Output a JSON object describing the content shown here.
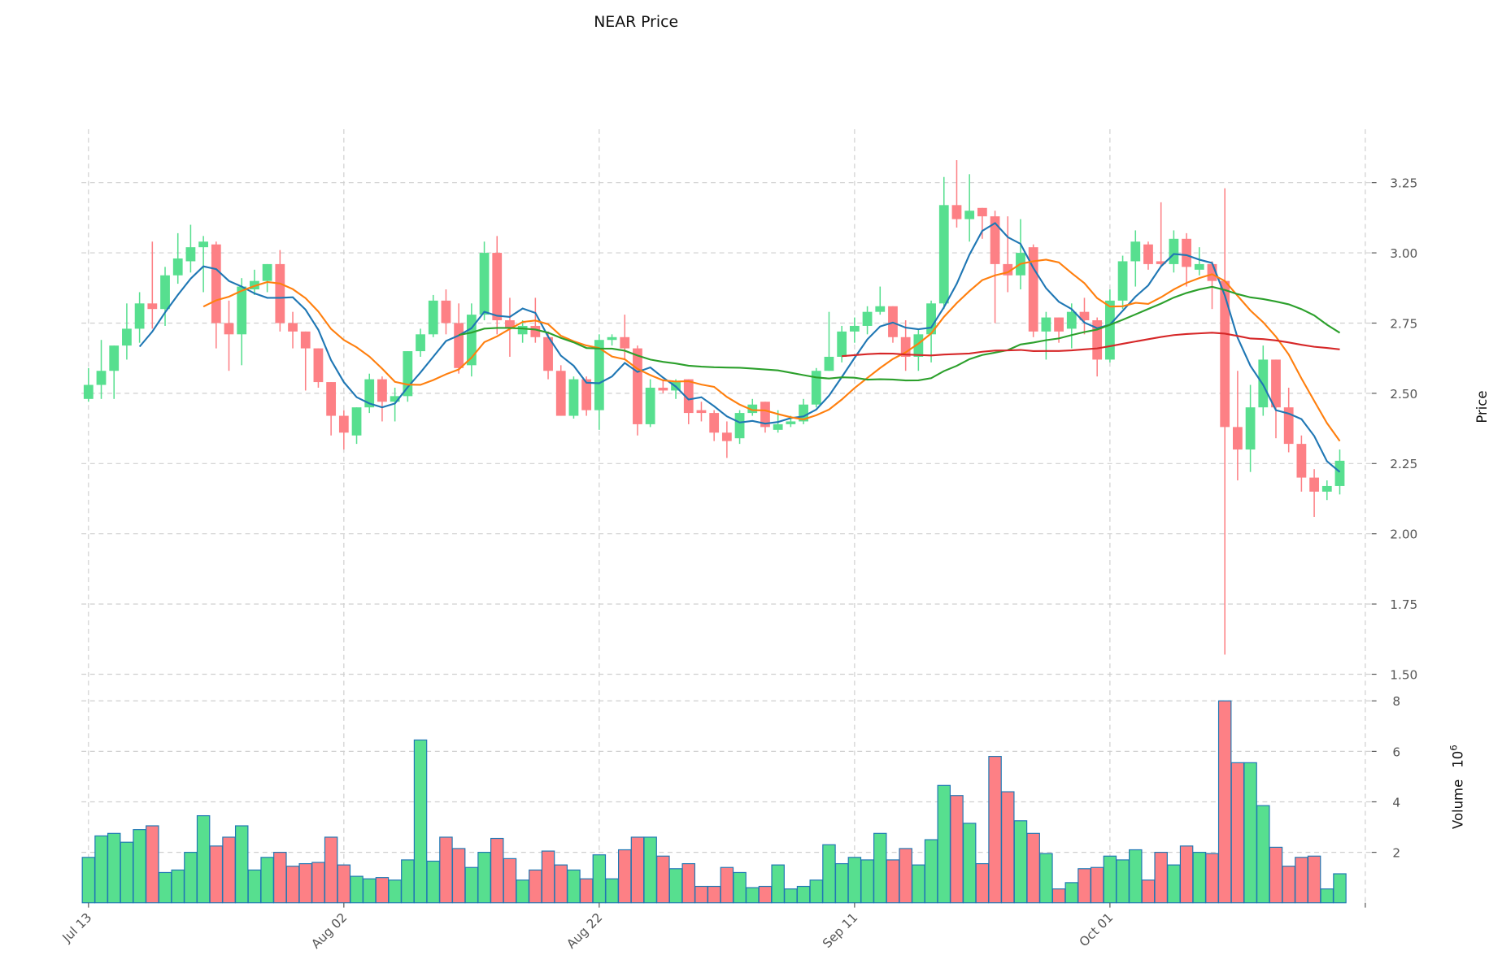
{
  "chart_data": {
    "type": "candlestick",
    "title": "NEAR Price",
    "ylabel_price": "Price",
    "ylabel_volume": "Volume",
    "volume_multiplier": "10^6",
    "volume_multiplier_base": "10",
    "volume_multiplier_exp": "6",
    "x_tick_labels": [
      {
        "index": 0,
        "label": "Jul 13"
      },
      {
        "index": 20,
        "label": "Aug 02"
      },
      {
        "index": 40,
        "label": "Aug 22"
      },
      {
        "index": 60,
        "label": "Sep 11"
      },
      {
        "index": 80,
        "label": "Oct 01"
      },
      {
        "index": 100,
        "label": ""
      }
    ],
    "price_ticks": [
      "1.50",
      "1.75",
      "2.00",
      "2.25",
      "2.50",
      "2.75",
      "3.00",
      "3.25"
    ],
    "price_range": [
      1.46,
      3.44
    ],
    "volume_ticks": [
      "2",
      "4",
      "6",
      "8"
    ],
    "volume_range": [
      0,
      8.42
    ],
    "grid": true,
    "colors": {
      "up": "#57df8f",
      "down": "#fd8085",
      "volume_edge": "#1f77b4",
      "ma": [
        "#1f77b4",
        "#ff7f0e",
        "#2ca02c",
        "#d62728"
      ]
    },
    "ma_periods": [
      5,
      10,
      30,
      60
    ],
    "ohlc": [
      [
        2.48,
        2.59,
        2.47,
        2.53
      ],
      [
        2.53,
        2.69,
        2.48,
        2.58
      ],
      [
        2.58,
        2.67,
        2.48,
        2.67
      ],
      [
        2.67,
        2.82,
        2.62,
        2.73
      ],
      [
        2.73,
        2.86,
        2.68,
        2.82
      ],
      [
        2.82,
        3.04,
        2.73,
        2.8
      ],
      [
        2.8,
        2.95,
        2.74,
        2.92
      ],
      [
        2.92,
        3.07,
        2.89,
        2.98
      ],
      [
        2.97,
        3.1,
        2.93,
        3.02
      ],
      [
        3.02,
        3.06,
        2.86,
        3.04
      ],
      [
        3.03,
        3.04,
        2.66,
        2.75
      ],
      [
        2.75,
        2.83,
        2.58,
        2.71
      ],
      [
        2.71,
        2.91,
        2.6,
        2.88
      ],
      [
        2.87,
        2.94,
        2.85,
        2.9
      ],
      [
        2.9,
        2.96,
        2.86,
        2.96
      ],
      [
        2.96,
        3.01,
        2.72,
        2.75
      ],
      [
        2.75,
        2.79,
        2.66,
        2.72
      ],
      [
        2.72,
        2.72,
        2.51,
        2.66
      ],
      [
        2.66,
        2.66,
        2.52,
        2.54
      ],
      [
        2.54,
        2.54,
        2.35,
        2.42
      ],
      [
        2.42,
        2.44,
        2.3,
        2.36
      ],
      [
        2.35,
        2.45,
        2.32,
        2.45
      ],
      [
        2.45,
        2.57,
        2.43,
        2.55
      ],
      [
        2.55,
        2.56,
        2.4,
        2.47
      ],
      [
        2.47,
        2.52,
        2.4,
        2.49
      ],
      [
        2.49,
        2.65,
        2.47,
        2.65
      ],
      [
        2.65,
        2.73,
        2.63,
        2.71
      ],
      [
        2.71,
        2.85,
        2.7,
        2.83
      ],
      [
        2.83,
        2.87,
        2.71,
        2.75
      ],
      [
        2.75,
        2.82,
        2.57,
        2.59
      ],
      [
        2.6,
        2.82,
        2.56,
        2.78
      ],
      [
        2.78,
        3.04,
        2.76,
        3.0
      ],
      [
        3.0,
        3.06,
        2.71,
        2.76
      ],
      [
        2.76,
        2.84,
        2.63,
        2.73
      ],
      [
        2.71,
        2.76,
        2.68,
        2.74
      ],
      [
        2.74,
        2.84,
        2.68,
        2.7
      ],
      [
        2.7,
        2.72,
        2.55,
        2.58
      ],
      [
        2.58,
        2.6,
        2.42,
        2.42
      ],
      [
        2.42,
        2.56,
        2.41,
        2.55
      ],
      [
        2.55,
        2.56,
        2.42,
        2.44
      ],
      [
        2.44,
        2.71,
        2.37,
        2.69
      ],
      [
        2.69,
        2.71,
        2.67,
        2.7
      ],
      [
        2.7,
        2.78,
        2.62,
        2.66
      ],
      [
        2.66,
        2.67,
        2.35,
        2.39
      ],
      [
        2.39,
        2.55,
        2.38,
        2.52
      ],
      [
        2.52,
        2.55,
        2.5,
        2.51
      ],
      [
        2.51,
        2.55,
        2.48,
        2.54
      ],
      [
        2.55,
        2.55,
        2.39,
        2.43
      ],
      [
        2.44,
        2.47,
        2.4,
        2.43
      ],
      [
        2.43,
        2.44,
        2.33,
        2.36
      ],
      [
        2.36,
        2.4,
        2.27,
        2.33
      ],
      [
        2.34,
        2.44,
        2.32,
        2.43
      ],
      [
        2.43,
        2.48,
        2.42,
        2.46
      ],
      [
        2.47,
        2.47,
        2.36,
        2.38
      ],
      [
        2.37,
        2.44,
        2.36,
        2.39
      ],
      [
        2.39,
        2.42,
        2.38,
        2.4
      ],
      [
        2.4,
        2.48,
        2.39,
        2.46
      ],
      [
        2.46,
        2.59,
        2.45,
        2.58
      ],
      [
        2.58,
        2.79,
        2.58,
        2.63
      ],
      [
        2.63,
        2.74,
        2.61,
        2.72
      ],
      [
        2.72,
        2.77,
        2.68,
        2.74
      ],
      [
        2.74,
        2.81,
        2.71,
        2.79
      ],
      [
        2.79,
        2.88,
        2.78,
        2.81
      ],
      [
        2.81,
        2.81,
        2.68,
        2.7
      ],
      [
        2.7,
        2.76,
        2.58,
        2.63
      ],
      [
        2.63,
        2.73,
        2.58,
        2.71
      ],
      [
        2.71,
        2.83,
        2.61,
        2.82
      ],
      [
        2.82,
        3.27,
        2.8,
        3.17
      ],
      [
        3.17,
        3.33,
        3.09,
        3.12
      ],
      [
        3.12,
        3.28,
        3.04,
        3.15
      ],
      [
        3.16,
        3.16,
        3.05,
        3.13
      ],
      [
        3.13,
        3.15,
        2.75,
        2.96
      ],
      [
        2.96,
        3.13,
        2.86,
        2.92
      ],
      [
        2.92,
        3.12,
        2.87,
        3.0
      ],
      [
        3.02,
        3.03,
        2.7,
        2.72
      ],
      [
        2.72,
        2.79,
        2.62,
        2.77
      ],
      [
        2.77,
        2.77,
        2.68,
        2.72
      ],
      [
        2.73,
        2.82,
        2.66,
        2.79
      ],
      [
        2.79,
        2.84,
        2.71,
        2.76
      ],
      [
        2.76,
        2.77,
        2.56,
        2.62
      ],
      [
        2.62,
        2.87,
        2.61,
        2.83
      ],
      [
        2.83,
        2.99,
        2.8,
        2.97
      ],
      [
        2.97,
        3.08,
        2.88,
        3.04
      ],
      [
        3.03,
        3.04,
        2.94,
        2.96
      ],
      [
        2.97,
        3.18,
        2.95,
        2.96
      ],
      [
        2.96,
        3.08,
        2.93,
        3.05
      ],
      [
        3.05,
        3.07,
        2.88,
        2.95
      ],
      [
        2.94,
        3.02,
        2.92,
        2.96
      ],
      [
        2.96,
        2.97,
        2.8,
        2.9
      ],
      [
        2.9,
        3.23,
        1.57,
        2.38
      ],
      [
        2.38,
        2.58,
        2.19,
        2.3
      ],
      [
        2.3,
        2.53,
        2.22,
        2.45
      ],
      [
        2.45,
        2.67,
        2.42,
        2.62
      ],
      [
        2.62,
        2.62,
        2.34,
        2.45
      ],
      [
        2.45,
        2.52,
        2.29,
        2.32
      ],
      [
        2.32,
        2.35,
        2.15,
        2.2
      ],
      [
        2.2,
        2.23,
        2.06,
        2.15
      ],
      [
        2.15,
        2.19,
        2.12,
        2.17
      ],
      [
        2.17,
        2.3,
        2.14,
        2.26
      ]
    ],
    "volume": [
      1.8,
      2.65,
      2.75,
      2.4,
      2.9,
      3.05,
      1.2,
      1.3,
      2.0,
      3.45,
      2.25,
      2.6,
      3.05,
      1.3,
      1.8,
      2.0,
      1.45,
      1.55,
      1.6,
      2.6,
      1.5,
      1.05,
      0.95,
      1.0,
      0.9,
      1.7,
      6.45,
      1.65,
      2.6,
      2.15,
      1.4,
      2.0,
      2.55,
      1.75,
      0.9,
      1.3,
      2.05,
      1.5,
      1.3,
      0.95,
      1.9,
      0.95,
      2.1,
      2.6,
      2.6,
      1.85,
      1.35,
      1.55,
      0.65,
      0.65,
      1.4,
      1.2,
      0.6,
      0.65,
      1.5,
      0.55,
      0.65,
      0.9,
      2.3,
      1.55,
      1.8,
      1.7,
      2.75,
      1.7,
      2.15,
      1.5,
      2.5,
      4.65,
      4.25,
      3.15,
      1.55,
      5.8,
      4.4,
      3.25,
      2.75,
      1.95,
      0.55,
      0.8,
      1.35,
      1.4,
      1.85,
      1.7,
      2.1,
      0.9,
      2.0,
      1.5,
      2.25,
      2.0,
      1.95,
      8.0,
      5.55,
      5.55,
      3.85,
      2.2,
      1.45,
      1.8,
      1.85,
      0.55,
      1.15
    ]
  }
}
